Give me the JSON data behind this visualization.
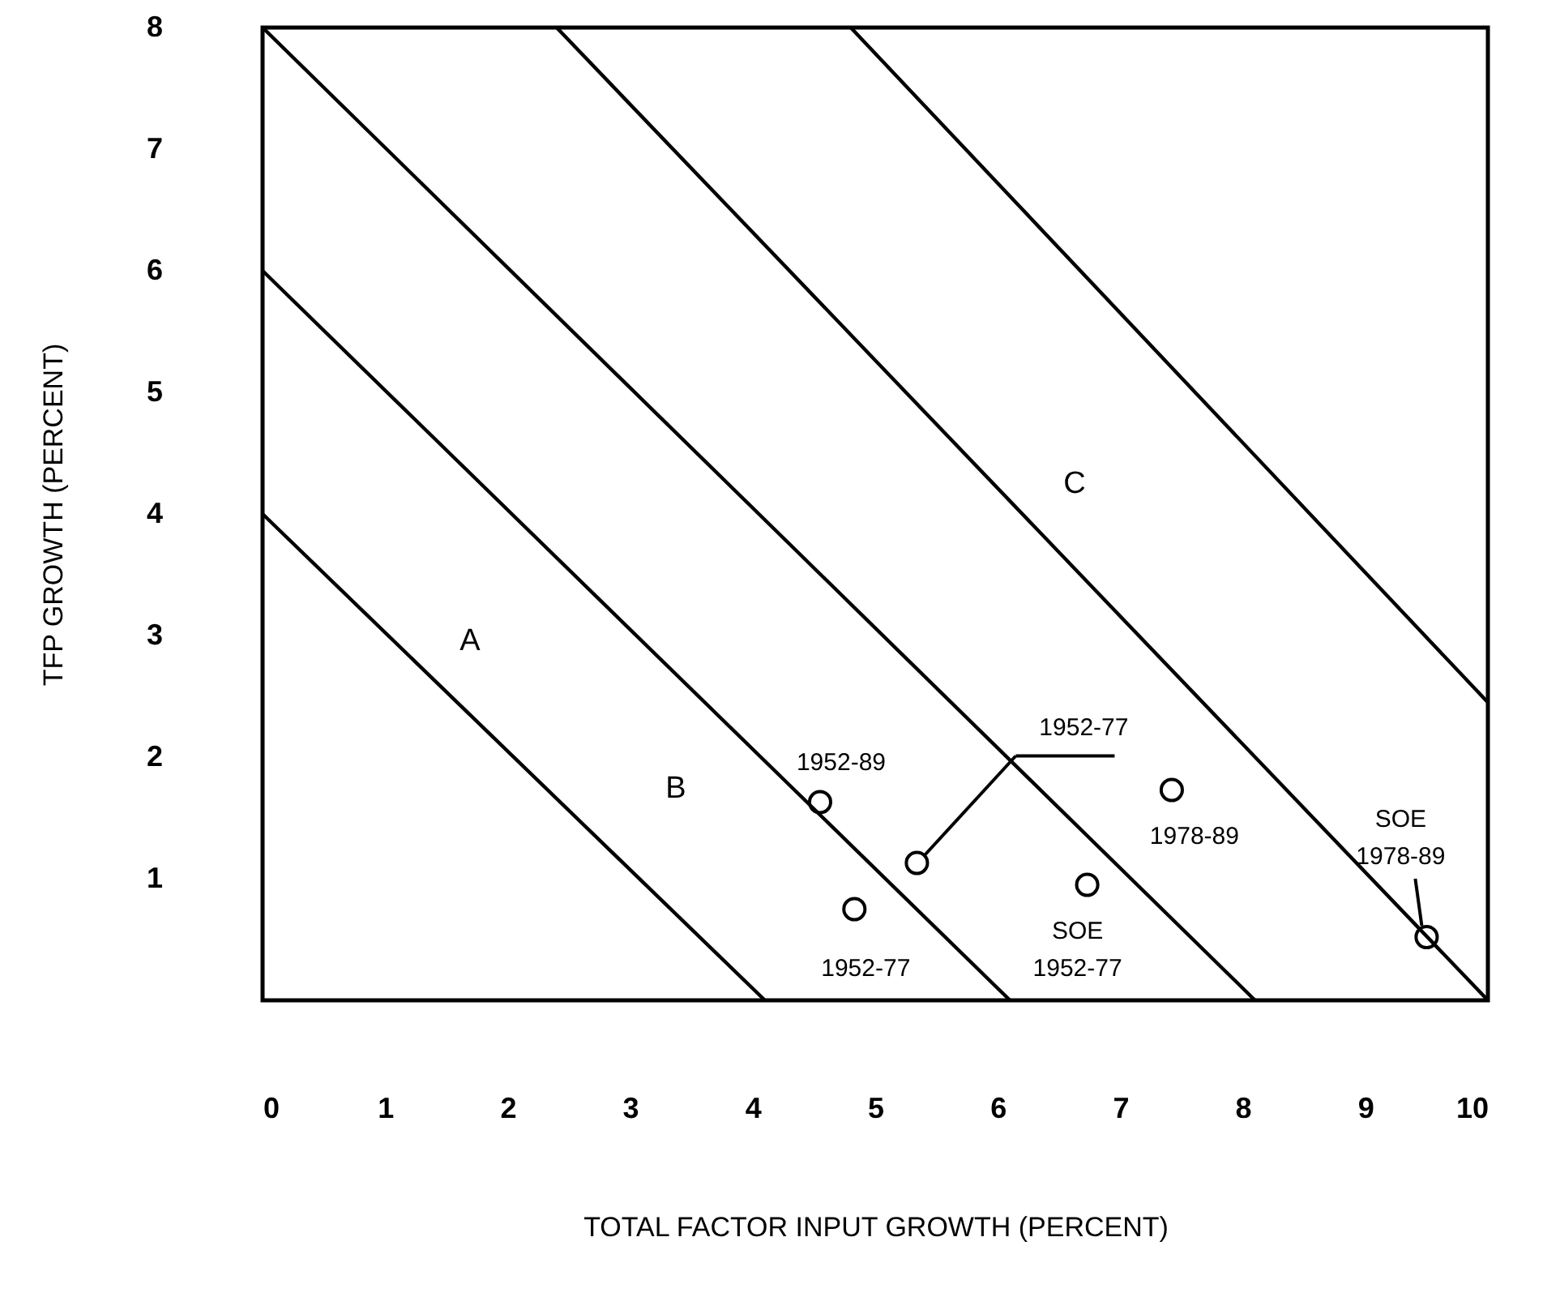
{
  "chart_data": {
    "type": "scatter",
    "xlabel": "TOTAL FACTOR INPUT GROWTH (PERCENT)",
    "ylabel": "TFP GROWTH (PERCENT)",
    "xlim": [
      0,
      10
    ],
    "ylim": [
      0,
      8
    ],
    "xticks": [
      0,
      1,
      2,
      3,
      4,
      5,
      6,
      7,
      8,
      9,
      10
    ],
    "yticks": [
      1,
      2,
      3,
      4,
      5,
      6,
      7,
      8
    ],
    "grid": false,
    "marker": "circle",
    "line_style": "solid",
    "series": [
      {
        "type": "scatter",
        "color": "#000000",
        "x": [
          4.55,
          5.34,
          4.83,
          6.73,
          7.42,
          9.5
        ],
        "values": [
          1.63,
          1.13,
          0.75,
          0.95,
          1.73,
          0.52
        ],
        "value_labels": [
          "1952-89",
          "1952-77",
          "1952-77",
          "SOE 1952-77",
          "1978-89",
          "SOE 1978-89"
        ]
      },
      {
        "type": "line",
        "marker": "none",
        "color": "#000000",
        "x": [
          0,
          4.1
        ],
        "values": [
          4,
          0
        ]
      },
      {
        "type": "line",
        "marker": "none",
        "color": "#000000",
        "x": [
          0,
          6.1
        ],
        "values": [
          6,
          0
        ]
      },
      {
        "type": "line",
        "marker": "none",
        "color": "#000000",
        "x": [
          0,
          8.1
        ],
        "values": [
          8,
          0
        ]
      },
      {
        "type": "line",
        "marker": "none",
        "color": "#000000",
        "x": [
          2.4,
          10
        ],
        "values": [
          8,
          0
        ]
      },
      {
        "type": "line",
        "marker": "none",
        "color": "#000000",
        "x": [
          4.8,
          10
        ],
        "values": [
          8,
          2.45
        ]
      }
    ],
    "annotations": [
      "A",
      "B",
      "C"
    ]
  }
}
